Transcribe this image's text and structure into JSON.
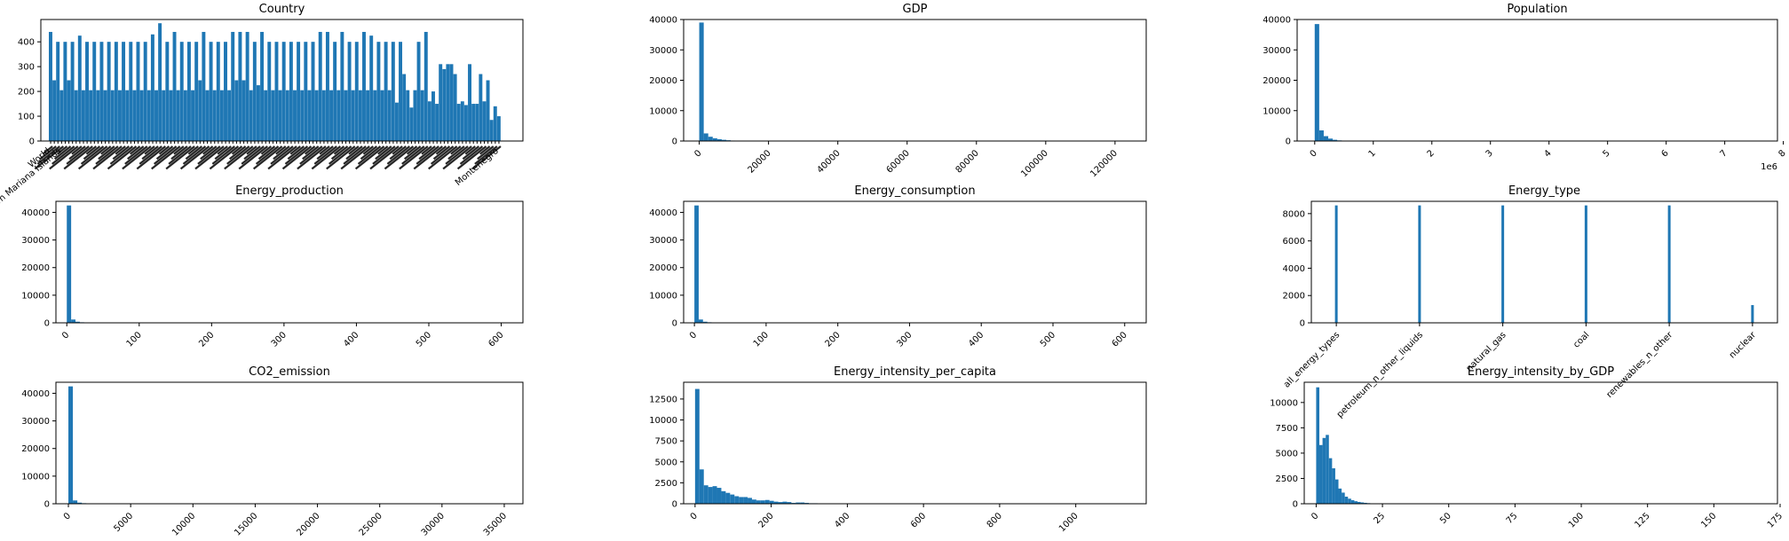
{
  "chart_data": [
    {
      "type": "bar",
      "title": "Country",
      "ylim": [
        0,
        490
      ],
      "yticks": [
        0,
        100,
        200,
        300,
        400
      ],
      "xlabels_rotated": true,
      "tick_labels_visible": [
        "World",
        "Northern Mariana Islands",
        "Montenegro"
      ],
      "values": [
        440,
        245,
        400,
        205,
        400,
        245,
        400,
        205,
        425,
        205,
        400,
        205,
        400,
        205,
        400,
        205,
        400,
        205,
        400,
        205,
        400,
        205,
        400,
        205,
        400,
        205,
        400,
        205,
        430,
        205,
        475,
        205,
        400,
        205,
        440,
        205,
        400,
        205,
        400,
        205,
        400,
        245,
        440,
        205,
        400,
        205,
        400,
        205,
        400,
        205,
        440,
        245,
        440,
        245,
        440,
        205,
        400,
        225,
        440,
        205,
        400,
        205,
        400,
        205,
        400,
        205,
        400,
        205,
        400,
        205,
        400,
        205,
        400,
        205,
        440,
        205,
        440,
        205,
        400,
        205,
        440,
        205,
        400,
        205,
        400,
        205,
        440,
        205,
        425,
        205,
        400,
        205,
        400,
        205,
        400,
        155,
        400,
        270,
        205,
        135,
        205,
        400,
        205,
        440,
        160,
        200,
        150,
        310,
        290,
        310,
        310,
        270,
        150,
        160,
        145,
        310,
        150,
        150,
        270,
        160,
        245,
        85,
        140,
        100
      ]
    },
    {
      "type": "bar",
      "title": "GDP",
      "xlim": [
        -4500,
        129000
      ],
      "ylim": [
        0,
        40000
      ],
      "yticks": [
        0,
        10000,
        20000,
        30000,
        40000
      ],
      "xticks": [
        0,
        20000,
        40000,
        60000,
        80000,
        100000,
        120000
      ],
      "bin_width": 1300,
      "x_start": 0,
      "values": [
        39000,
        2500,
        1400,
        900,
        600,
        400,
        250,
        150,
        100,
        80,
        50,
        40,
        30,
        20,
        15,
        10,
        8,
        6
      ]
    },
    {
      "type": "bar",
      "title": "Population",
      "xlim": [
        -0.3,
        7.9
      ],
      "ylim": [
        0,
        40000
      ],
      "yticks": [
        0,
        10000,
        20000,
        30000,
        40000
      ],
      "xticks": [
        0,
        1,
        2,
        3,
        4,
        5,
        6,
        7,
        8
      ],
      "x_offset_label": "1e6",
      "bin_width": 0.077,
      "x_start": 0,
      "values": [
        38500,
        3500,
        1600,
        800,
        400,
        200,
        100,
        50,
        25
      ]
    },
    {
      "type": "bar",
      "title": "Energy_production",
      "xlim": [
        -15,
        630
      ],
      "ylim": [
        0,
        44000
      ],
      "yticks": [
        0,
        10000,
        20000,
        30000,
        40000
      ],
      "xticks": [
        0,
        100,
        200,
        300,
        400,
        500,
        600
      ],
      "bin_width": 6,
      "x_start": 0,
      "values": [
        42500,
        1200,
        400,
        200,
        100,
        50,
        25,
        15
      ]
    },
    {
      "type": "bar",
      "title": "Energy_consumption",
      "xlim": [
        -15,
        630
      ],
      "ylim": [
        0,
        44000
      ],
      "yticks": [
        0,
        10000,
        20000,
        30000,
        40000
      ],
      "xticks": [
        0,
        100,
        200,
        300,
        400,
        500,
        600
      ],
      "bin_width": 6,
      "x_start": 0,
      "values": [
        42500,
        1200,
        400,
        200,
        100,
        50,
        25,
        15
      ]
    },
    {
      "type": "bar",
      "title": "Energy_type",
      "xlim": [
        -0.3,
        5.3
      ],
      "ylim": [
        0,
        8900
      ],
      "yticks": [
        0,
        2000,
        4000,
        6000,
        8000
      ],
      "categories": [
        "all_energy_types",
        "petroleum_n_other_liquids",
        "natural_gas",
        "coal",
        "renewables_n_other",
        "nuclear"
      ],
      "values": [
        8600,
        8600,
        8600,
        8600,
        8600,
        1300
      ]
    },
    {
      "type": "bar",
      "title": "CO2_emission",
      "xlim": [
        -1000,
        36500
      ],
      "ylim": [
        0,
        44000
      ],
      "yticks": [
        0,
        10000,
        20000,
        30000,
        40000
      ],
      "xticks": [
        0,
        5000,
        10000,
        15000,
        20000,
        25000,
        30000,
        35000
      ],
      "bin_width": 360,
      "x_start": 0,
      "values": [
        42500,
        1200,
        400,
        200,
        100,
        50
      ]
    },
    {
      "type": "bar",
      "title": "Energy_intensity_per_capita",
      "xlim": [
        -30,
        1185
      ],
      "ylim": [
        0,
        14500
      ],
      "yticks": [
        0,
        2500,
        5000,
        7500,
        10000,
        12500
      ],
      "xticks": [
        0,
        200,
        400,
        600,
        800,
        1000
      ],
      "bin_width": 11.5,
      "x_start": 0,
      "values": [
        13700,
        4100,
        2200,
        2000,
        2100,
        1900,
        1500,
        1300,
        1100,
        900,
        800,
        800,
        700,
        500,
        400,
        400,
        450,
        350,
        250,
        200,
        250,
        200,
        100,
        150,
        150,
        100,
        60,
        60,
        40,
        40,
        25,
        20,
        15,
        10
      ]
    },
    {
      "type": "bar",
      "title": "Energy_intensity_by_GDP",
      "xlim": [
        -4.5,
        174
      ],
      "ylim": [
        0,
        12000
      ],
      "yticks": [
        0,
        2500,
        5000,
        7500,
        10000
      ],
      "xticks": [
        0,
        25,
        50,
        75,
        100,
        125,
        150,
        175
      ],
      "bin_width": 1.2,
      "x_start": 0,
      "values": [
        11500,
        5800,
        6500,
        6800,
        4500,
        3500,
        2400,
        1500,
        1100,
        700,
        500,
        350,
        250,
        180,
        130,
        90,
        60,
        40,
        30,
        20
      ]
    }
  ]
}
